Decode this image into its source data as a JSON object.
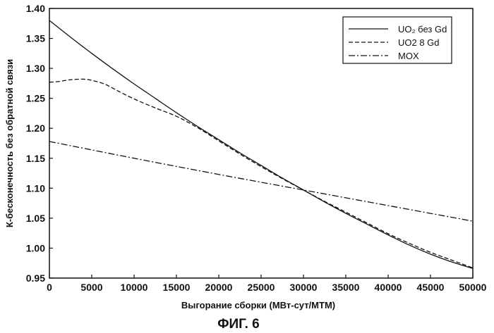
{
  "chart_data": {
    "type": "line",
    "title": "",
    "xlabel": "Выгорание сборки (МВт-сут/МТМ)",
    "ylabel": "К-бесконечность без обратной связи",
    "caption": "ФИГ. 6",
    "xlim": [
      0,
      50000
    ],
    "ylim": [
      0.95,
      1.4
    ],
    "x_ticks": [
      0,
      5000,
      10000,
      15000,
      20000,
      25000,
      30000,
      35000,
      40000,
      45000,
      50000
    ],
    "x_tick_labels": [
      "0",
      "5000",
      "10000",
      "15000",
      "20000",
      "25000",
      "30000",
      "35000",
      "40000",
      "45000",
      "50000"
    ],
    "y_ticks": [
      0.95,
      1.0,
      1.05,
      1.1,
      1.15,
      1.2,
      1.25,
      1.3,
      1.35,
      1.4
    ],
    "y_tick_labels": [
      "0.95",
      "1.00",
      "1.05",
      "1.10",
      "1.15",
      "1.20",
      "1.25",
      "1.30",
      "1.35",
      "1.40"
    ],
    "grid": false,
    "legend_position": "top-right",
    "series": [
      {
        "name": "UO₂ без Gd",
        "style": "solid",
        "x": [
          0,
          2500,
          5000,
          7500,
          10000,
          12500,
          15000,
          17500,
          20000,
          22500,
          25000,
          27500,
          30000,
          32500,
          35000,
          37500,
          40000,
          42500,
          45000,
          47500,
          50000
        ],
        "values": [
          1.38,
          1.352,
          1.325,
          1.299,
          1.274,
          1.25,
          1.226,
          1.203,
          1.181,
          1.159,
          1.138,
          1.117,
          1.097,
          1.077,
          1.058,
          1.04,
          1.022,
          1.005,
          0.99,
          0.977,
          0.966
        ]
      },
      {
        "name": "UO2 8 Gd",
        "style": "dashed",
        "x": [
          0,
          1000,
          2500,
          4000,
          5000,
          6500,
          8000,
          10000,
          12500,
          15000,
          17500,
          20000,
          22500,
          25000,
          27500,
          30000,
          32500,
          35000,
          37500,
          40000,
          42500,
          45000,
          47500,
          50000
        ],
        "values": [
          1.277,
          1.278,
          1.281,
          1.282,
          1.28,
          1.274,
          1.263,
          1.249,
          1.234,
          1.22,
          1.201,
          1.179,
          1.157,
          1.136,
          1.116,
          1.097,
          1.078,
          1.06,
          1.042,
          1.024,
          1.008,
          0.993,
          0.98,
          0.967
        ]
      },
      {
        "name": "MOX",
        "style": "dashdot",
        "x": [
          0,
          10000,
          20000,
          30000,
          40000,
          50000
        ],
        "values": [
          1.178,
          1.15,
          1.123,
          1.097,
          1.071,
          1.045
        ]
      }
    ]
  }
}
